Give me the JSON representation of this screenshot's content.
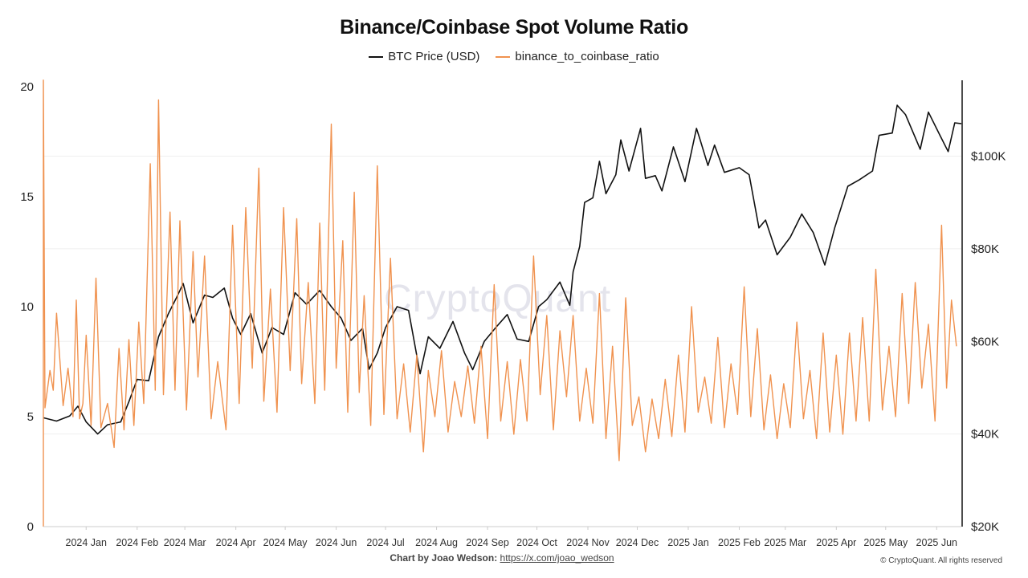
{
  "chart_data": {
    "type": "line",
    "title": "Binance/Coinbase Spot Volume Ratio",
    "watermark": "CryptoQuant",
    "credit_label": "Chart by Joao Wedson:",
    "credit_link": "https://x.com/joao_wedson",
    "copyright": "© CryptoQuant. All rights reserved",
    "x_range": [
      "2023-12-20",
      "2025-06-30"
    ],
    "x_ticks": [
      {
        "date": "2024-01-15",
        "label": "2024 Jan"
      },
      {
        "date": "2024-02-15",
        "label": "2024 Feb"
      },
      {
        "date": "2024-03-15",
        "label": "2024 Mar"
      },
      {
        "date": "2024-04-15",
        "label": "2024 Apr"
      },
      {
        "date": "2024-05-15",
        "label": "2024 May"
      },
      {
        "date": "2024-06-15",
        "label": "2024 Jun"
      },
      {
        "date": "2024-07-15",
        "label": "2024 Jul"
      },
      {
        "date": "2024-08-15",
        "label": "2024 Aug"
      },
      {
        "date": "2024-09-15",
        "label": "2024 Sep"
      },
      {
        "date": "2024-10-15",
        "label": "2024 Oct"
      },
      {
        "date": "2024-11-15",
        "label": "2024 Nov"
      },
      {
        "date": "2024-12-15",
        "label": "2024 Dec"
      },
      {
        "date": "2025-01-15",
        "label": "2025 Jan"
      },
      {
        "date": "2025-02-15",
        "label": "2025 Feb"
      },
      {
        "date": "2025-03-15",
        "label": "2025 Mar"
      },
      {
        "date": "2025-04-15",
        "label": "2025 Apr"
      },
      {
        "date": "2025-05-15",
        "label": "2025 May"
      },
      {
        "date": "2025-06-15",
        "label": "2025 Jun"
      }
    ],
    "y_left": {
      "ylim": [
        0,
        20
      ],
      "ticks": [
        {
          "value": 0,
          "label": "0"
        },
        {
          "value": 5,
          "label": "5"
        },
        {
          "value": 10,
          "label": "10"
        },
        {
          "value": 15,
          "label": "15"
        },
        {
          "value": 20,
          "label": "20"
        }
      ]
    },
    "y_right": {
      "ylim": [
        20000,
        115000
      ],
      "ticks": [
        {
          "value": 20000,
          "label": "$20K"
        },
        {
          "value": 40000,
          "label": "$40K"
        },
        {
          "value": 60000,
          "label": "$60K"
        },
        {
          "value": 80000,
          "label": "$80K"
        },
        {
          "value": 100000,
          "label": "$100K"
        }
      ]
    },
    "series": [
      {
        "name": "BTC Price (USD)",
        "axis": "right",
        "color": "#111111",
        "points": [
          [
            "2023-12-20",
            43500
          ],
          [
            "2023-12-28",
            42800
          ],
          [
            "2024-01-05",
            43900
          ],
          [
            "2024-01-10",
            46000
          ],
          [
            "2024-01-15",
            42600
          ],
          [
            "2024-01-22",
            40000
          ],
          [
            "2024-01-28",
            42000
          ],
          [
            "2024-02-05",
            42600
          ],
          [
            "2024-02-10",
            47000
          ],
          [
            "2024-02-15",
            51800
          ],
          [
            "2024-02-22",
            51500
          ],
          [
            "2024-02-28",
            61000
          ],
          [
            "2024-03-05",
            66000
          ],
          [
            "2024-03-10",
            69500
          ],
          [
            "2024-03-14",
            72500
          ],
          [
            "2024-03-20",
            64000
          ],
          [
            "2024-03-27",
            70000
          ],
          [
            "2024-04-01",
            69500
          ],
          [
            "2024-04-08",
            71500
          ],
          [
            "2024-04-13",
            65000
          ],
          [
            "2024-04-18",
            61500
          ],
          [
            "2024-04-24",
            66000
          ],
          [
            "2024-05-01",
            57500
          ],
          [
            "2024-05-07",
            63000
          ],
          [
            "2024-05-14",
            61500
          ],
          [
            "2024-05-21",
            70500
          ],
          [
            "2024-05-28",
            68000
          ],
          [
            "2024-06-05",
            71000
          ],
          [
            "2024-06-12",
            67500
          ],
          [
            "2024-06-18",
            65000
          ],
          [
            "2024-06-24",
            60200
          ],
          [
            "2024-07-01",
            62800
          ],
          [
            "2024-07-05",
            54000
          ],
          [
            "2024-07-10",
            57500
          ],
          [
            "2024-07-15",
            63000
          ],
          [
            "2024-07-22",
            67500
          ],
          [
            "2024-07-29",
            66700
          ],
          [
            "2024-08-05",
            53000
          ],
          [
            "2024-08-10",
            61000
          ],
          [
            "2024-08-17",
            58500
          ],
          [
            "2024-08-25",
            64300
          ],
          [
            "2024-09-01",
            57500
          ],
          [
            "2024-09-06",
            53900
          ],
          [
            "2024-09-13",
            60000
          ],
          [
            "2024-09-20",
            63000
          ],
          [
            "2024-09-27",
            65800
          ],
          [
            "2024-10-03",
            60500
          ],
          [
            "2024-10-10",
            60000
          ],
          [
            "2024-10-16",
            67500
          ],
          [
            "2024-10-21",
            69000
          ],
          [
            "2024-10-29",
            72800
          ],
          [
            "2024-11-04",
            67800
          ],
          [
            "2024-11-06",
            75000
          ],
          [
            "2024-11-10",
            80500
          ],
          [
            "2024-11-13",
            90000
          ],
          [
            "2024-11-18",
            91000
          ],
          [
            "2024-11-22",
            98900
          ],
          [
            "2024-11-26",
            91900
          ],
          [
            "2024-12-02",
            96000
          ],
          [
            "2024-12-05",
            103500
          ],
          [
            "2024-12-10",
            96800
          ],
          [
            "2024-12-17",
            106000
          ],
          [
            "2024-12-20",
            95200
          ],
          [
            "2024-12-26",
            95800
          ],
          [
            "2024-12-30",
            92500
          ],
          [
            "2025-01-06",
            102000
          ],
          [
            "2025-01-13",
            94500
          ],
          [
            "2025-01-20",
            106000
          ],
          [
            "2025-01-22",
            103800
          ],
          [
            "2025-01-27",
            98000
          ],
          [
            "2025-01-31",
            102400
          ],
          [
            "2025-02-06",
            96500
          ],
          [
            "2025-02-15",
            97500
          ],
          [
            "2025-02-21",
            96000
          ],
          [
            "2025-02-27",
            84500
          ],
          [
            "2025-03-03",
            86200
          ],
          [
            "2025-03-10",
            78700
          ],
          [
            "2025-03-18",
            82500
          ],
          [
            "2025-03-25",
            87500
          ],
          [
            "2025-04-01",
            83500
          ],
          [
            "2025-04-08",
            76500
          ],
          [
            "2025-04-14",
            84500
          ],
          [
            "2025-04-22",
            93500
          ],
          [
            "2025-04-29",
            94900
          ],
          [
            "2025-05-07",
            96800
          ],
          [
            "2025-05-11",
            104500
          ],
          [
            "2025-05-19",
            105000
          ],
          [
            "2025-05-22",
            111000
          ],
          [
            "2025-05-27",
            109000
          ],
          [
            "2025-06-05",
            101500
          ],
          [
            "2025-06-10",
            109500
          ],
          [
            "2025-06-17",
            104500
          ],
          [
            "2025-06-22",
            101000
          ],
          [
            "2025-06-26",
            107200
          ],
          [
            "2025-06-30",
            107000
          ]
        ]
      },
      {
        "name": "binance_to_coinbase_ratio",
        "axis": "left",
        "color": "#f0924f",
        "points": [
          [
            "2023-12-20",
            0.0
          ],
          [
            "2023-12-20",
            20.3
          ],
          [
            "2023-12-21",
            5.4
          ],
          [
            "2023-12-24",
            7.1
          ],
          [
            "2023-12-26",
            6.2
          ],
          [
            "2023-12-28",
            9.7
          ],
          [
            "2024-01-01",
            5.5
          ],
          [
            "2024-01-04",
            7.2
          ],
          [
            "2024-01-07",
            5.0
          ],
          [
            "2024-01-09",
            10.3
          ],
          [
            "2024-01-11",
            4.9
          ],
          [
            "2024-01-13",
            5.6
          ],
          [
            "2024-01-15",
            8.7
          ],
          [
            "2024-01-18",
            4.6
          ],
          [
            "2024-01-21",
            11.3
          ],
          [
            "2024-01-24",
            4.5
          ],
          [
            "2024-01-28",
            5.6
          ],
          [
            "2024-02-01",
            3.6
          ],
          [
            "2024-02-04",
            8.1
          ],
          [
            "2024-02-07",
            4.4
          ],
          [
            "2024-02-10",
            8.5
          ],
          [
            "2024-02-13",
            4.6
          ],
          [
            "2024-02-16",
            9.3
          ],
          [
            "2024-02-19",
            5.6
          ],
          [
            "2024-02-23",
            16.5
          ],
          [
            "2024-02-26",
            6.2
          ],
          [
            "2024-02-28",
            19.4
          ],
          [
            "2024-03-02",
            6.0
          ],
          [
            "2024-03-06",
            14.3
          ],
          [
            "2024-03-09",
            6.2
          ],
          [
            "2024-03-12",
            13.9
          ],
          [
            "2024-03-16",
            5.3
          ],
          [
            "2024-03-20",
            12.5
          ],
          [
            "2024-03-23",
            6.8
          ],
          [
            "2024-03-27",
            12.3
          ],
          [
            "2024-03-31",
            4.9
          ],
          [
            "2024-04-04",
            7.5
          ],
          [
            "2024-04-09",
            4.4
          ],
          [
            "2024-04-13",
            13.7
          ],
          [
            "2024-04-17",
            5.6
          ],
          [
            "2024-04-21",
            14.5
          ],
          [
            "2024-04-25",
            7.2
          ],
          [
            "2024-04-29",
            16.3
          ],
          [
            "2024-05-02",
            5.7
          ],
          [
            "2024-05-06",
            10.8
          ],
          [
            "2024-05-10",
            5.2
          ],
          [
            "2024-05-14",
            14.5
          ],
          [
            "2024-05-18",
            7.1
          ],
          [
            "2024-05-22",
            14.0
          ],
          [
            "2024-05-25",
            6.5
          ],
          [
            "2024-05-29",
            11.1
          ],
          [
            "2024-06-02",
            5.6
          ],
          [
            "2024-06-05",
            13.8
          ],
          [
            "2024-06-08",
            6.2
          ],
          [
            "2024-06-12",
            18.3
          ],
          [
            "2024-06-15",
            7.2
          ],
          [
            "2024-06-19",
            13.0
          ],
          [
            "2024-06-22",
            5.2
          ],
          [
            "2024-06-26",
            15.2
          ],
          [
            "2024-06-29",
            6.1
          ],
          [
            "2024-07-02",
            10.5
          ],
          [
            "2024-07-06",
            4.6
          ],
          [
            "2024-07-10",
            16.4
          ],
          [
            "2024-07-14",
            5.1
          ],
          [
            "2024-07-18",
            12.2
          ],
          [
            "2024-07-22",
            4.9
          ],
          [
            "2024-07-26",
            7.4
          ],
          [
            "2024-07-30",
            4.3
          ],
          [
            "2024-08-03",
            7.8
          ],
          [
            "2024-08-07",
            3.4
          ],
          [
            "2024-08-10",
            7.1
          ],
          [
            "2024-08-14",
            5.0
          ],
          [
            "2024-08-18",
            8.0
          ],
          [
            "2024-08-22",
            4.3
          ],
          [
            "2024-08-26",
            6.6
          ],
          [
            "2024-08-30",
            5.0
          ],
          [
            "2024-09-03",
            7.3
          ],
          [
            "2024-09-07",
            4.7
          ],
          [
            "2024-09-11",
            8.2
          ],
          [
            "2024-09-15",
            4.0
          ],
          [
            "2024-09-19",
            11.0
          ],
          [
            "2024-09-23",
            4.8
          ],
          [
            "2024-09-27",
            7.5
          ],
          [
            "2024-10-01",
            4.2
          ],
          [
            "2024-10-05",
            7.6
          ],
          [
            "2024-10-09",
            4.8
          ],
          [
            "2024-10-13",
            12.3
          ],
          [
            "2024-10-17",
            6.0
          ],
          [
            "2024-10-21",
            9.6
          ],
          [
            "2024-10-25",
            4.4
          ],
          [
            "2024-10-29",
            8.9
          ],
          [
            "2024-11-02",
            5.9
          ],
          [
            "2024-11-06",
            9.6
          ],
          [
            "2024-11-10",
            4.8
          ],
          [
            "2024-11-14",
            7.2
          ],
          [
            "2024-11-18",
            4.7
          ],
          [
            "2024-11-22",
            10.6
          ],
          [
            "2024-11-26",
            4.0
          ],
          [
            "2024-11-30",
            8.2
          ],
          [
            "2024-12-04",
            3.0
          ],
          [
            "2024-12-08",
            10.4
          ],
          [
            "2024-12-12",
            4.6
          ],
          [
            "2024-12-16",
            5.9
          ],
          [
            "2024-12-20",
            3.4
          ],
          [
            "2024-12-24",
            5.8
          ],
          [
            "2024-12-28",
            4.0
          ],
          [
            "2025-01-01",
            6.7
          ],
          [
            "2025-01-05",
            4.1
          ],
          [
            "2025-01-09",
            7.8
          ],
          [
            "2025-01-13",
            4.3
          ],
          [
            "2025-01-17",
            10.0
          ],
          [
            "2025-01-21",
            5.2
          ],
          [
            "2025-01-25",
            6.8
          ],
          [
            "2025-01-29",
            4.7
          ],
          [
            "2025-02-02",
            8.6
          ],
          [
            "2025-02-06",
            4.5
          ],
          [
            "2025-02-10",
            7.4
          ],
          [
            "2025-02-14",
            5.1
          ],
          [
            "2025-02-18",
            10.9
          ],
          [
            "2025-02-22",
            5.0
          ],
          [
            "2025-02-26",
            9.0
          ],
          [
            "2025-03-02",
            4.4
          ],
          [
            "2025-03-06",
            6.9
          ],
          [
            "2025-03-10",
            4.0
          ],
          [
            "2025-03-14",
            6.5
          ],
          [
            "2025-03-18",
            4.5
          ],
          [
            "2025-03-22",
            9.3
          ],
          [
            "2025-03-26",
            4.9
          ],
          [
            "2025-03-30",
            7.1
          ],
          [
            "2025-04-03",
            4.0
          ],
          [
            "2025-04-07",
            8.8
          ],
          [
            "2025-04-11",
            4.3
          ],
          [
            "2025-04-15",
            7.8
          ],
          [
            "2025-04-19",
            4.2
          ],
          [
            "2025-04-23",
            8.8
          ],
          [
            "2025-04-27",
            4.8
          ],
          [
            "2025-05-01",
            9.5
          ],
          [
            "2025-05-05",
            4.8
          ],
          [
            "2025-05-09",
            11.7
          ],
          [
            "2025-05-13",
            5.3
          ],
          [
            "2025-05-17",
            8.2
          ],
          [
            "2025-05-21",
            5.0
          ],
          [
            "2025-05-25",
            10.6
          ],
          [
            "2025-05-29",
            5.6
          ],
          [
            "2025-06-02",
            11.1
          ],
          [
            "2025-06-06",
            6.3
          ],
          [
            "2025-06-10",
            9.2
          ],
          [
            "2025-06-14",
            4.8
          ],
          [
            "2025-06-18",
            13.7
          ],
          [
            "2025-06-21",
            6.3
          ],
          [
            "2025-06-24",
            10.3
          ],
          [
            "2025-06-27",
            8.2
          ]
        ]
      }
    ],
    "legend_position": "top-center"
  }
}
